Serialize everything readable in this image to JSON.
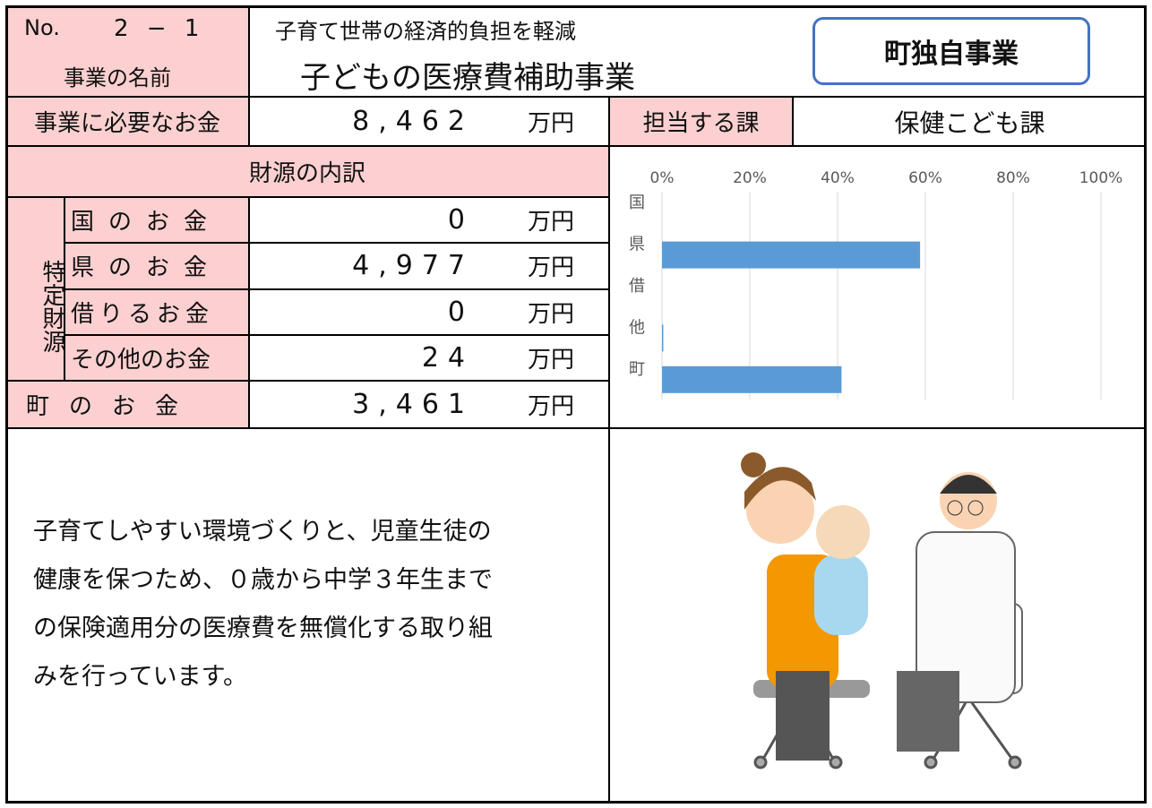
{
  "header": {
    "no_label": "No.",
    "no": "2 − 1",
    "name_label": "事業の名前",
    "subtitle": "子育て世帯の経済的負担を軽減",
    "title": "子どもの医療費補助事業",
    "badge": "町独自事業"
  },
  "cost": {
    "label": "事業に必要なお金",
    "value": "8,462",
    "unit": "万円"
  },
  "department": {
    "label": "担当する課",
    "value": "保健こども課"
  },
  "funding": {
    "title": "財源の内訳",
    "specific_label": "特定財源",
    "rows": [
      {
        "label": "国のお金",
        "value": "0",
        "unit": "万円"
      },
      {
        "label": "県のお金",
        "value": "4,977",
        "unit": "万円"
      },
      {
        "label": "借りるお金",
        "value": "0",
        "unit": "万円"
      },
      {
        "label": "その他のお金",
        "value": "24",
        "unit": "万円"
      }
    ],
    "town": {
      "label": "町のお金",
      "value": "3,461",
      "unit": "万円"
    }
  },
  "chart_data": {
    "type": "bar",
    "orientation": "horizontal",
    "categories": [
      "国",
      "県",
      "借",
      "他",
      "町"
    ],
    "values": [
      0,
      58.8,
      0,
      0.3,
      40.9
    ],
    "color": "#5b9bd5",
    "xlim": [
      0,
      100
    ],
    "xticks": [
      {
        "value": 0,
        "label": "0%"
      },
      {
        "value": 20,
        "label": "20%"
      },
      {
        "value": 40,
        "label": "40%"
      },
      {
        "value": 60,
        "label": "60%"
      },
      {
        "value": 80,
        "label": "80%"
      },
      {
        "value": 100,
        "label": "100%"
      }
    ],
    "grid": true
  },
  "description": {
    "lines": [
      "子育てしやすい環境づくりと、児童生徒の",
      "健康を保つため、０歳から中学３年生まで",
      "の保険適用分の医療費を無償化する取り組",
      "みを行っています。"
    ]
  }
}
